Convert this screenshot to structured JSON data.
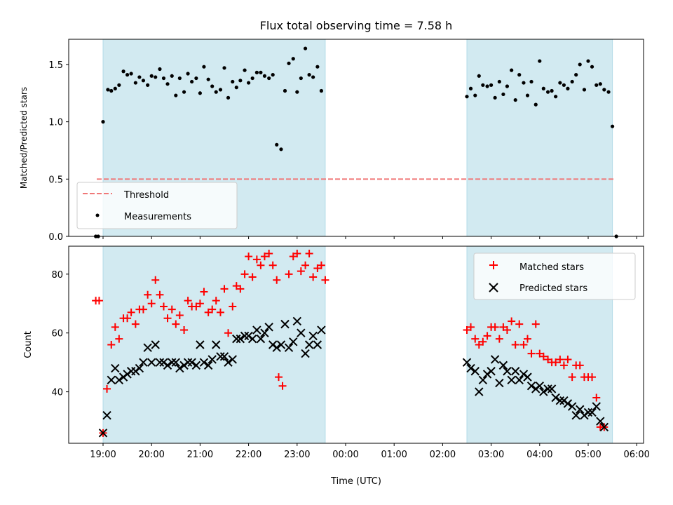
{
  "chart_data": {
    "title": "Flux total observing time = 7.58 h",
    "xlabel": "Time (UTC)",
    "x_ticks": [
      "19:00",
      "20:00",
      "21:00",
      "22:00",
      "23:00",
      "00:00",
      "01:00",
      "02:00",
      "03:00",
      "04:00",
      "05:00",
      "06:00"
    ],
    "shaded_spans_hours": [
      [
        19.0,
        23.58
      ],
      [
        26.5,
        29.5
      ]
    ],
    "colors": {
      "shade": "#add8e6",
      "threshold": "#f07878",
      "matched": "#ff0000",
      "predicted": "#000000",
      "measure": "#000000"
    },
    "top": {
      "type": "scatter",
      "ylabel": "Matched/Predicted stars",
      "ylim": [
        0,
        1.72
      ],
      "yticks": [
        "0.0",
        "0.5",
        "1.0",
        "1.5"
      ],
      "threshold": {
        "name": "Threshold",
        "value": 0.5,
        "x_range": [
          18.87,
          29.55
        ]
      },
      "legend": {
        "position": "lower-left",
        "entries": [
          "Threshold",
          "Measurements"
        ]
      },
      "measurements": [
        [
          18.85,
          0.0
        ],
        [
          18.9,
          0.0
        ],
        [
          19.0,
          1.0
        ],
        [
          19.1,
          1.28
        ],
        [
          19.17,
          1.27
        ],
        [
          19.25,
          1.29
        ],
        [
          19.33,
          1.32
        ],
        [
          19.42,
          1.44
        ],
        [
          19.5,
          1.41
        ],
        [
          19.58,
          1.42
        ],
        [
          19.67,
          1.34
        ],
        [
          19.75,
          1.39
        ],
        [
          19.83,
          1.36
        ],
        [
          19.92,
          1.32
        ],
        [
          20.0,
          1.4
        ],
        [
          20.08,
          1.39
        ],
        [
          20.17,
          1.46
        ],
        [
          20.25,
          1.38
        ],
        [
          20.33,
          1.33
        ],
        [
          20.42,
          1.4
        ],
        [
          20.5,
          1.23
        ],
        [
          20.58,
          1.38
        ],
        [
          20.67,
          1.26
        ],
        [
          20.75,
          1.42
        ],
        [
          20.83,
          1.35
        ],
        [
          20.92,
          1.38
        ],
        [
          21.0,
          1.25
        ],
        [
          21.08,
          1.48
        ],
        [
          21.17,
          1.37
        ],
        [
          21.25,
          1.31
        ],
        [
          21.33,
          1.26
        ],
        [
          21.42,
          1.28
        ],
        [
          21.5,
          1.47
        ],
        [
          21.58,
          1.21
        ],
        [
          21.67,
          1.35
        ],
        [
          21.75,
          1.3
        ],
        [
          21.83,
          1.36
        ],
        [
          21.92,
          1.45
        ],
        [
          22.0,
          1.34
        ],
        [
          22.08,
          1.38
        ],
        [
          22.17,
          1.43
        ],
        [
          22.25,
          1.43
        ],
        [
          22.33,
          1.4
        ],
        [
          22.42,
          1.38
        ],
        [
          22.5,
          1.41
        ],
        [
          22.58,
          0.8
        ],
        [
          22.67,
          0.76
        ],
        [
          22.75,
          1.27
        ],
        [
          22.83,
          1.51
        ],
        [
          22.92,
          1.55
        ],
        [
          23.0,
          1.26
        ],
        [
          23.08,
          1.38
        ],
        [
          23.17,
          1.64
        ],
        [
          23.25,
          1.41
        ],
        [
          23.33,
          1.39
        ],
        [
          23.42,
          1.48
        ],
        [
          23.5,
          1.27
        ],
        [
          26.5,
          1.22
        ],
        [
          26.58,
          1.29
        ],
        [
          26.67,
          1.23
        ],
        [
          26.75,
          1.4
        ],
        [
          26.83,
          1.32
        ],
        [
          26.92,
          1.31
        ],
        [
          27.0,
          1.32
        ],
        [
          27.08,
          1.21
        ],
        [
          27.17,
          1.35
        ],
        [
          27.25,
          1.24
        ],
        [
          27.33,
          1.31
        ],
        [
          27.42,
          1.45
        ],
        [
          27.5,
          1.19
        ],
        [
          27.58,
          1.41
        ],
        [
          27.67,
          1.34
        ],
        [
          27.75,
          1.23
        ],
        [
          27.83,
          1.35
        ],
        [
          27.92,
          1.15
        ],
        [
          28.0,
          1.53
        ],
        [
          28.08,
          1.29
        ],
        [
          28.17,
          1.26
        ],
        [
          28.25,
          1.27
        ],
        [
          28.33,
          1.22
        ],
        [
          28.42,
          1.34
        ],
        [
          28.5,
          1.32
        ],
        [
          28.58,
          1.29
        ],
        [
          28.67,
          1.35
        ],
        [
          28.75,
          1.41
        ],
        [
          28.83,
          1.5
        ],
        [
          28.92,
          1.28
        ],
        [
          29.0,
          1.53
        ],
        [
          29.08,
          1.48
        ],
        [
          29.17,
          1.32
        ],
        [
          29.25,
          1.33
        ],
        [
          29.33,
          1.28
        ],
        [
          29.42,
          1.26
        ],
        [
          29.5,
          0.96
        ],
        [
          29.58,
          0.0
        ]
      ]
    },
    "bottom": {
      "type": "scatter",
      "ylabel": "Count",
      "ylim": [
        22.5,
        89.5
      ],
      "yticks": [
        "40",
        "60",
        "80"
      ],
      "legend": {
        "position": "upper-right",
        "entries": [
          "Matched stars",
          "Predicted stars"
        ]
      },
      "series": [
        {
          "name": "Matched stars",
          "marker": "plus",
          "points": [
            [
              18.85,
              71
            ],
            [
              18.92,
              71
            ],
            [
              19.0,
              26
            ],
            [
              19.08,
              41
            ],
            [
              19.17,
              56
            ],
            [
              19.25,
              62
            ],
            [
              19.33,
              58
            ],
            [
              19.42,
              65
            ],
            [
              19.5,
              65
            ],
            [
              19.58,
              67
            ],
            [
              19.67,
              63
            ],
            [
              19.75,
              68
            ],
            [
              19.83,
              68
            ],
            [
              19.92,
              73
            ],
            [
              20.0,
              70
            ],
            [
              20.08,
              78
            ],
            [
              20.17,
              73
            ],
            [
              20.25,
              69
            ],
            [
              20.33,
              65
            ],
            [
              20.42,
              68
            ],
            [
              20.5,
              63
            ],
            [
              20.58,
              66
            ],
            [
              20.67,
              61
            ],
            [
              20.75,
              71
            ],
            [
              20.83,
              69
            ],
            [
              20.92,
              69
            ],
            [
              21.0,
              70
            ],
            [
              21.08,
              74
            ],
            [
              21.17,
              67
            ],
            [
              21.25,
              68
            ],
            [
              21.33,
              71
            ],
            [
              21.42,
              67
            ],
            [
              21.5,
              75
            ],
            [
              21.58,
              60
            ],
            [
              21.67,
              69
            ],
            [
              21.75,
              76
            ],
            [
              21.83,
              75
            ],
            [
              21.92,
              80
            ],
            [
              22.0,
              86
            ],
            [
              22.08,
              79
            ],
            [
              22.17,
              85
            ],
            [
              22.25,
              83
            ],
            [
              22.33,
              86
            ],
            [
              22.42,
              87
            ],
            [
              22.5,
              83
            ],
            [
              22.58,
              78
            ],
            [
              22.62,
              45
            ],
            [
              22.7,
              42
            ],
            [
              22.83,
              80
            ],
            [
              22.92,
              86
            ],
            [
              23.0,
              87
            ],
            [
              23.08,
              81
            ],
            [
              23.17,
              83
            ],
            [
              23.25,
              87
            ],
            [
              23.33,
              79
            ],
            [
              23.42,
              82
            ],
            [
              23.5,
              83
            ],
            [
              23.58,
              78
            ],
            [
              26.5,
              61
            ],
            [
              26.58,
              62
            ],
            [
              26.67,
              58
            ],
            [
              26.75,
              56
            ],
            [
              26.83,
              57
            ],
            [
              26.92,
              59
            ],
            [
              27.0,
              62
            ],
            [
              27.08,
              62
            ],
            [
              27.17,
              58
            ],
            [
              27.25,
              62
            ],
            [
              27.33,
              61
            ],
            [
              27.42,
              64
            ],
            [
              27.5,
              56
            ],
            [
              27.58,
              63
            ],
            [
              27.67,
              56
            ],
            [
              27.75,
              58
            ],
            [
              27.83,
              53
            ],
            [
              27.92,
              63
            ],
            [
              28.0,
              53
            ],
            [
              28.08,
              52
            ],
            [
              28.17,
              51
            ],
            [
              28.25,
              50
            ],
            [
              28.33,
              50
            ],
            [
              28.42,
              51
            ],
            [
              28.5,
              49
            ],
            [
              28.58,
              51
            ],
            [
              28.67,
              45
            ],
            [
              28.75,
              49
            ],
            [
              28.83,
              49
            ],
            [
              28.92,
              45
            ],
            [
              29.0,
              45
            ],
            [
              29.08,
              45
            ],
            [
              29.17,
              38
            ],
            [
              29.25,
              28
            ],
            [
              29.33,
              28
            ]
          ]
        },
        {
          "name": "Predicted stars",
          "marker": "x",
          "points": [
            [
              19.0,
              26
            ],
            [
              19.08,
              32
            ],
            [
              19.17,
              44
            ],
            [
              19.25,
              48
            ],
            [
              19.33,
              44
            ],
            [
              19.42,
              45
            ],
            [
              19.5,
              46
            ],
            [
              19.58,
              47
            ],
            [
              19.67,
              47
            ],
            [
              19.75,
              48
            ],
            [
              19.83,
              50
            ],
            [
              19.92,
              55
            ],
            [
              20.0,
              50
            ],
            [
              20.08,
              56
            ],
            [
              20.17,
              50
            ],
            [
              20.25,
              50
            ],
            [
              20.33,
              49
            ],
            [
              20.42,
              50
            ],
            [
              20.5,
              50
            ],
            [
              20.58,
              48
            ],
            [
              20.67,
              49
            ],
            [
              20.75,
              50
            ],
            [
              20.83,
              50
            ],
            [
              20.92,
              49
            ],
            [
              21.0,
              56
            ],
            [
              21.08,
              50
            ],
            [
              21.17,
              49
            ],
            [
              21.25,
              51
            ],
            [
              21.33,
              56
            ],
            [
              21.42,
              52
            ],
            [
              21.5,
              52
            ],
            [
              21.58,
              50
            ],
            [
              21.67,
              51
            ],
            [
              21.75,
              58
            ],
            [
              21.83,
              58
            ],
            [
              21.92,
              59
            ],
            [
              22.0,
              59
            ],
            [
              22.08,
              58
            ],
            [
              22.17,
              61
            ],
            [
              22.25,
              58
            ],
            [
              22.33,
              60
            ],
            [
              22.42,
              62
            ],
            [
              22.5,
              56
            ],
            [
              22.58,
              55
            ],
            [
              22.67,
              56
            ],
            [
              22.75,
              63
            ],
            [
              22.83,
              55
            ],
            [
              22.92,
              57
            ],
            [
              23.0,
              64
            ],
            [
              23.08,
              60
            ],
            [
              23.17,
              53
            ],
            [
              23.25,
              56
            ],
            [
              23.33,
              59
            ],
            [
              23.42,
              56
            ],
            [
              23.5,
              61
            ],
            [
              26.5,
              50
            ],
            [
              26.58,
              48
            ],
            [
              26.67,
              47
            ],
            [
              26.75,
              40
            ],
            [
              26.83,
              44
            ],
            [
              26.92,
              46
            ],
            [
              27.0,
              47
            ],
            [
              27.08,
              51
            ],
            [
              27.17,
              43
            ],
            [
              27.25,
              49
            ],
            [
              27.33,
              47
            ],
            [
              27.42,
              44
            ],
            [
              27.5,
              47
            ],
            [
              27.58,
              44
            ],
            [
              27.67,
              46
            ],
            [
              27.75,
              45
            ],
            [
              27.83,
              42
            ],
            [
              27.92,
              41
            ],
            [
              28.0,
              42
            ],
            [
              28.08,
              40
            ],
            [
              28.17,
              41
            ],
            [
              28.25,
              41
            ],
            [
              28.33,
              38
            ],
            [
              28.42,
              37
            ],
            [
              28.5,
              37
            ],
            [
              28.58,
              36
            ],
            [
              28.67,
              35
            ],
            [
              28.75,
              32
            ],
            [
              28.83,
              34
            ],
            [
              28.92,
              32
            ],
            [
              29.0,
              33
            ],
            [
              29.08,
              33
            ],
            [
              29.17,
              35
            ],
            [
              29.25,
              30
            ],
            [
              29.33,
              28
            ]
          ]
        }
      ]
    }
  }
}
